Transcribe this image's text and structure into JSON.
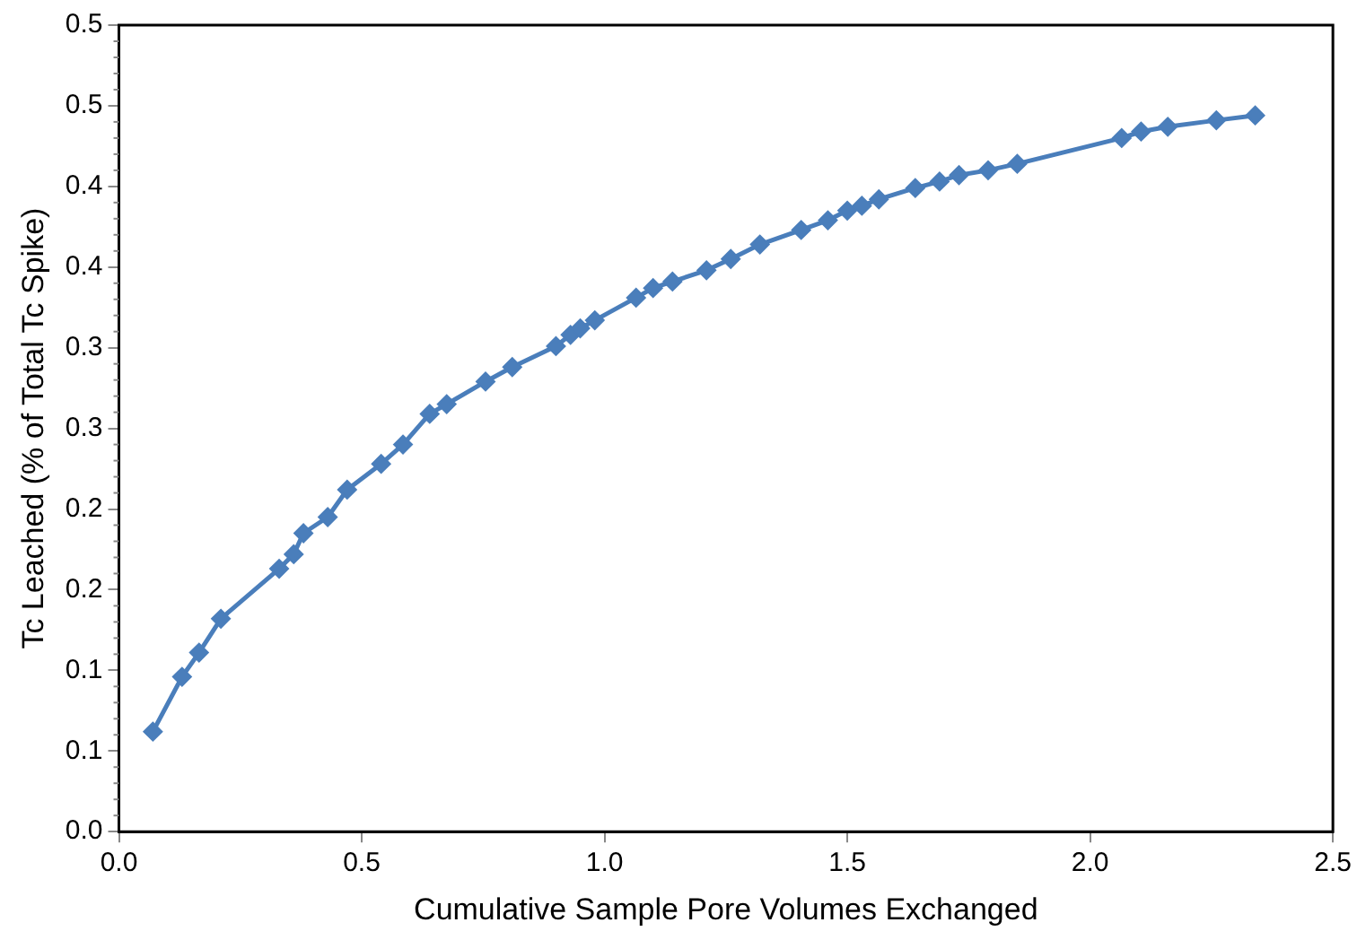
{
  "chart_data": {
    "type": "line",
    "xlabel": "Cumulative Sample Pore Volumes Exchanged",
    "ylabel": "Tc Leached (% of Total Tc Spike)",
    "x": [
      0.07,
      0.13,
      0.165,
      0.21,
      0.33,
      0.36,
      0.38,
      0.43,
      0.47,
      0.54,
      0.585,
      0.64,
      0.675,
      0.755,
      0.81,
      0.9,
      0.93,
      0.95,
      0.98,
      1.065,
      1.1,
      1.14,
      1.21,
      1.26,
      1.32,
      1.405,
      1.46,
      1.5,
      1.53,
      1.565,
      1.64,
      1.69,
      1.73,
      1.79,
      1.85,
      2.065,
      2.105,
      2.16,
      2.26,
      2.34
    ],
    "series": [
      {
        "color": "#4a7ebb",
        "values": [
          0.062,
          0.096,
          0.111,
          0.132,
          0.163,
          0.172,
          0.185,
          0.195,
          0.212,
          0.228,
          0.24,
          0.259,
          0.265,
          0.279,
          0.288,
          0.301,
          0.308,
          0.312,
          0.317,
          0.331,
          0.337,
          0.341,
          0.348,
          0.355,
          0.364,
          0.373,
          0.379,
          0.385,
          0.388,
          0.392,
          0.399,
          0.403,
          0.407,
          0.41,
          0.414,
          0.43,
          0.434,
          0.437,
          0.441,
          0.444
        ]
      }
    ],
    "xlim": [
      0,
      2.5
    ],
    "xticks": [
      {
        "value": 0,
        "label": "0.0"
      },
      0.5,
      {
        "value": 1,
        "label": "1.0"
      },
      1.5,
      {
        "value": 2,
        "label": "2.0"
      },
      2.5
    ],
    "ylim": [
      0,
      0.5
    ],
    "yticks": [
      {
        "value": 0,
        "label": "0.0"
      },
      {
        "value": 0.05,
        "label": "0.1"
      },
      0.1,
      {
        "value": 0.15,
        "label": "0.2"
      },
      0.2,
      {
        "value": 0.25,
        "label": "0.3"
      },
      0.3,
      {
        "value": 0.35,
        "label": "0.4"
      },
      0.4,
      {
        "value": 0.45,
        "label": "0.5"
      },
      0.5
    ],
    "grid": false,
    "legend": false,
    "marker": "diamond",
    "line_style": "solid"
  }
}
